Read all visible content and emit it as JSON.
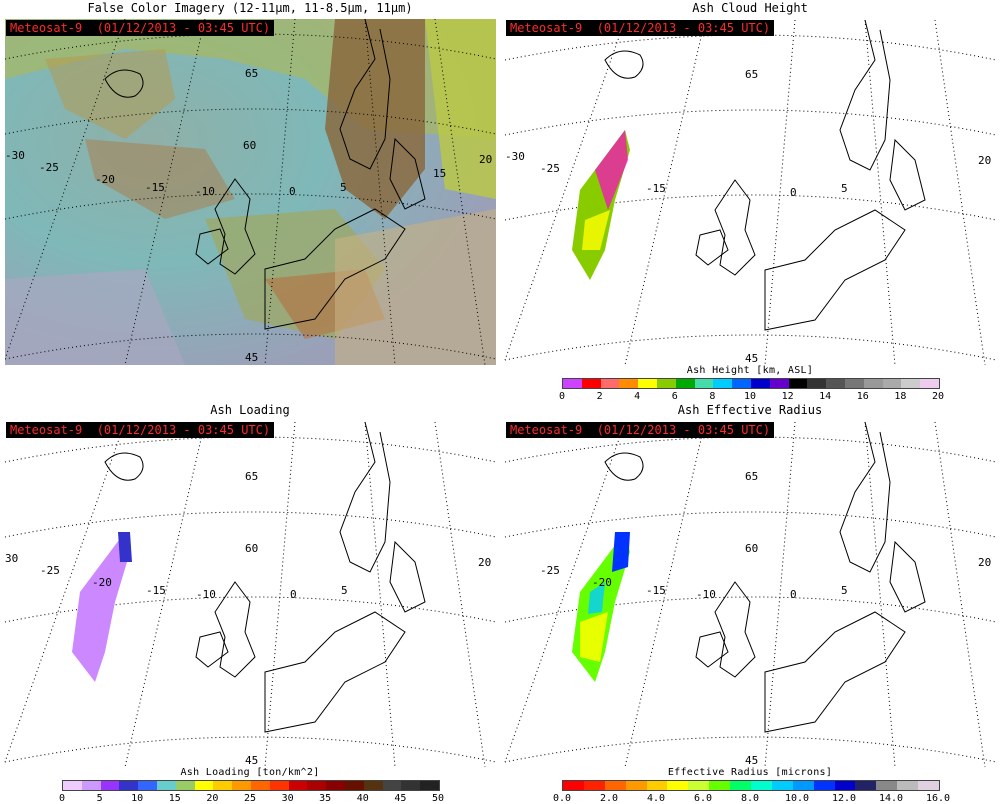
{
  "panels": [
    {
      "id": "false-color",
      "title": "False Color Imagery (12-11µm, 11-8.5µm, 11µm)",
      "badge": "Meteosat-9  (01/12/2013 - 03:45 UTC)"
    },
    {
      "id": "ash-height",
      "title": "Ash Cloud Height",
      "badge": "Meteosat-9  (01/12/2013 - 03:45 UTC)"
    },
    {
      "id": "ash-loading",
      "title": "Ash Loading",
      "badge": "Meteosat-9  (01/12/2013 - 03:45 UTC)"
    },
    {
      "id": "ash-radius",
      "title": "Ash Effective Radius",
      "badge": "Meteosat-9  (01/12/2013 - 03:45 UTC)"
    }
  ],
  "grid_labels": {
    "lon": [
      "-30",
      "-25",
      "-20",
      "-15",
      "-10",
      "0",
      "5",
      "15",
      "20"
    ],
    "lat": [
      "65",
      "60",
      "45"
    ]
  },
  "colorbars": {
    "height": {
      "label": "Ash Height [km, ASL]",
      "ticks": [
        "0",
        "2",
        "4",
        "6",
        "8",
        "10",
        "12",
        "14",
        "16",
        "18",
        "20"
      ],
      "colors": [
        "#cc44ff",
        "#ff0000",
        "#ff6a6a",
        "#ff8c00",
        "#ffff00",
        "#88cc00",
        "#00aa00",
        "#44ddaa",
        "#00ccff",
        "#0066ff",
        "#0000cc",
        "#6600cc",
        "#000000",
        "#333333",
        "#555555",
        "#777777",
        "#999999",
        "#aaaaaa",
        "#cccccc",
        "#eeccee"
      ]
    },
    "loading": {
      "label": "Ash Loading [ton/km^2]",
      "ticks": [
        "0",
        "5",
        "10",
        "15",
        "20",
        "25",
        "30",
        "35",
        "40",
        "45",
        "50"
      ],
      "colors": [
        "#eeccff",
        "#cc99ff",
        "#9933ff",
        "#3333cc",
        "#3366ff",
        "#66cccc",
        "#99cc66",
        "#ffff00",
        "#ffcc00",
        "#ff9900",
        "#ff6600",
        "#ff3300",
        "#cc0000",
        "#aa0000",
        "#880000",
        "#661100",
        "#553311",
        "#444444",
        "#333333",
        "#222222"
      ]
    },
    "radius": {
      "label": "Effective Radius [microns]",
      "ticks": [
        "0.0",
        "2.0",
        "4.0",
        "6.0",
        "8.0",
        "10.0",
        "12.0",
        "14.0",
        "16.0"
      ],
      "colors": [
        "#ff0000",
        "#ff2200",
        "#ff6600",
        "#ff9900",
        "#ffcc00",
        "#ffff00",
        "#ccff33",
        "#66ff00",
        "#00ff66",
        "#00ffcc",
        "#00ccff",
        "#0099ff",
        "#0033ff",
        "#0000cc",
        "#222266",
        "#888888",
        "#bbbbbb",
        "#e0d0e0"
      ]
    }
  }
}
